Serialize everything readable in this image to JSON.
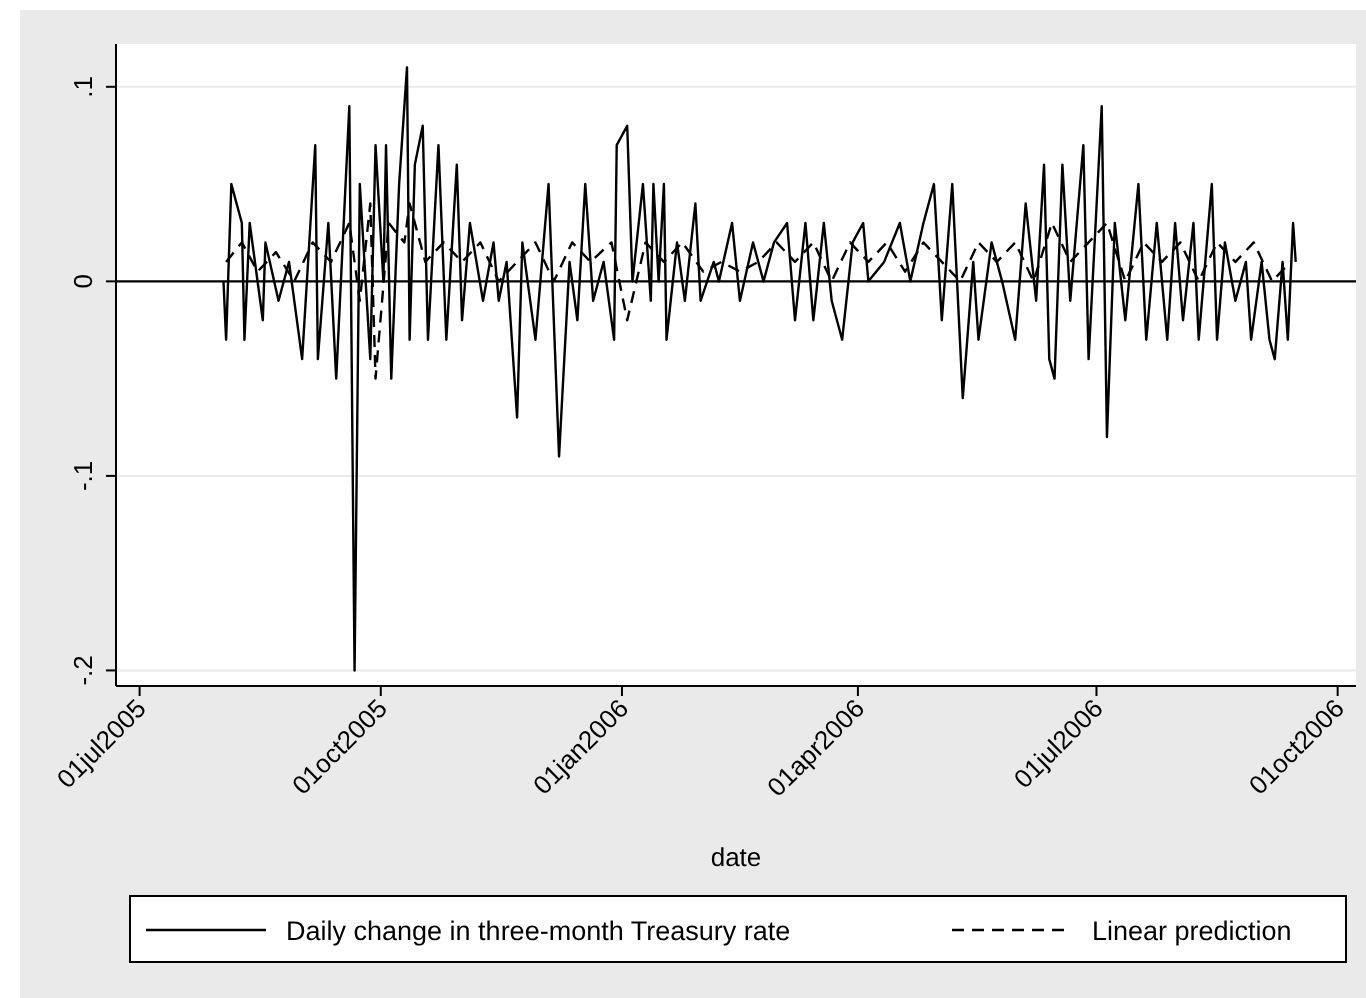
{
  "chart_data": {
    "type": "line",
    "xlabel": "date",
    "legend": "bottom",
    "grid": "y",
    "xlim": [
      "2005-06-22",
      "2006-10-08"
    ],
    "xticks": [
      {
        "value": "2005-07-01",
        "label": "01jul2005"
      },
      {
        "value": "2005-10-01",
        "label": "01oct2005"
      },
      {
        "value": "2006-01-01",
        "label": "01jan2006"
      },
      {
        "value": "2006-04-01",
        "label": "01apr2006"
      },
      {
        "value": "2006-07-01",
        "label": "01jul2006"
      },
      {
        "value": "2006-10-01",
        "label": "01oct2006"
      }
    ],
    "ylim": [
      -0.208,
      0.122
    ],
    "yticks": [
      {
        "value": -0.2,
        "label": "-.2"
      },
      {
        "value": -0.1,
        "label": "-.1"
      },
      {
        "value": 0,
        "label": "0"
      },
      {
        "value": 0.1,
        "label": ".1"
      }
    ],
    "ref_lines": [
      {
        "axis": "y",
        "value": 0,
        "color": "#000000"
      }
    ],
    "series": [
      {
        "name": "Daily change in three-month Treasury rate",
        "color": "#000000",
        "line_style": "solid",
        "x": [
          "2005-08-02",
          "2005-08-03",
          "2005-08-05",
          "2005-08-09",
          "2005-08-10",
          "2005-08-12",
          "2005-08-17",
          "2005-08-18",
          "2005-08-23",
          "2005-08-27",
          "2005-09-01",
          "2005-09-06",
          "2005-09-07",
          "2005-09-11",
          "2005-09-14",
          "2005-09-19",
          "2005-09-21",
          "2005-09-23",
          "2005-09-27",
          "2005-09-29",
          "2005-10-02",
          "2005-10-03",
          "2005-10-05",
          "2005-10-08",
          "2005-10-11",
          "2005-10-12",
          "2005-10-14",
          "2005-10-17",
          "2005-10-19",
          "2005-10-23",
          "2005-10-26",
          "2005-10-30",
          "2005-11-01",
          "2005-11-04",
          "2005-11-09",
          "2005-11-13",
          "2005-11-15",
          "2005-11-18",
          "2005-11-22",
          "2005-11-24",
          "2005-11-29",
          "2005-12-04",
          "2005-12-08",
          "2005-12-12",
          "2005-12-15",
          "2005-12-18",
          "2005-12-21",
          "2005-12-25",
          "2005-12-29",
          "2005-12-30",
          "2006-01-03",
          "2006-01-05",
          "2006-01-09",
          "2006-01-12",
          "2006-01-13",
          "2006-01-15",
          "2006-01-17",
          "2006-01-18",
          "2006-01-22",
          "2006-01-25",
          "2006-01-29",
          "2006-01-31",
          "2006-02-05",
          "2006-02-07",
          "2006-02-12",
          "2006-02-15",
          "2006-02-20",
          "2006-02-24",
          "2006-02-28",
          "2006-03-05",
          "2006-03-08",
          "2006-03-12",
          "2006-03-15",
          "2006-03-19",
          "2006-03-22",
          "2006-03-26",
          "2006-03-30",
          "2006-04-03",
          "2006-04-05",
          "2006-04-11",
          "2006-04-17",
          "2006-04-21",
          "2006-04-26",
          "2006-04-30",
          "2006-05-03",
          "2006-05-07",
          "2006-05-11",
          "2006-05-15",
          "2006-05-17",
          "2006-05-22",
          "2006-05-26",
          "2006-05-31",
          "2006-06-04",
          "2006-06-08",
          "2006-06-11",
          "2006-06-13",
          "2006-06-15",
          "2006-06-18",
          "2006-06-21",
          "2006-06-26",
          "2006-06-28",
          "2006-07-03",
          "2006-07-05",
          "2006-07-08",
          "2006-07-12",
          "2006-07-17",
          "2006-07-20",
          "2006-07-24",
          "2006-07-28",
          "2006-07-31",
          "2006-08-03",
          "2006-08-07",
          "2006-08-09",
          "2006-08-14",
          "2006-08-16",
          "2006-08-19",
          "2006-08-23",
          "2006-08-27",
          "2006-08-29",
          "2006-09-02",
          "2006-09-05",
          "2006-09-07",
          "2006-09-10",
          "2006-09-12",
          "2006-09-14",
          "2006-09-15"
        ],
        "values": [
          0,
          -0.03,
          0.05,
          0.03,
          -0.03,
          0.03,
          -0.02,
          0.02,
          -0.01,
          0.01,
          -0.04,
          0.07,
          -0.04,
          0.03,
          -0.05,
          0.09,
          -0.2,
          0.05,
          -0.04,
          0.07,
          0,
          0.07,
          -0.05,
          0.05,
          0.11,
          -0.03,
          0.06,
          0.08,
          -0.03,
          0.07,
          -0.03,
          0.06,
          -0.02,
          0.03,
          -0.01,
          0.02,
          -0.01,
          0.01,
          -0.07,
          0.02,
          -0.03,
          0.05,
          -0.09,
          0.01,
          -0.02,
          0.05,
          -0.01,
          0.01,
          -0.03,
          0.07,
          0.08,
          0,
          0.05,
          -0.01,
          0.05,
          0,
          0.05,
          -0.03,
          0.02,
          -0.01,
          0.04,
          -0.01,
          0.01,
          0,
          0.03,
          -0.01,
          0.02,
          0,
          0.02,
          0.03,
          -0.02,
          0.03,
          -0.02,
          0.03,
          -0.01,
          -0.03,
          0.02,
          0.03,
          0,
          0.01,
          0.03,
          0,
          0.03,
          0.05,
          -0.02,
          0.05,
          -0.06,
          0.01,
          -0.03,
          0.02,
          0,
          -0.03,
          0.04,
          -0.01,
          0.06,
          -0.04,
          -0.05,
          0.06,
          -0.01,
          0.07,
          -0.04,
          0.09,
          -0.08,
          0.03,
          -0.02,
          0.05,
          -0.03,
          0.03,
          -0.03,
          0.03,
          -0.02,
          0.03,
          -0.03,
          0.05,
          -0.03,
          0.02,
          -0.01,
          0.01,
          -0.03,
          0.01,
          -0.03,
          -0.04,
          0.01,
          -0.03,
          0.03,
          0.01
        ]
      },
      {
        "name": "Linear prediction",
        "color": "#000000",
        "line_style": "dashed",
        "x": [
          "2005-08-03",
          "2005-08-09",
          "2005-08-15",
          "2005-08-22",
          "2005-08-29",
          "2005-09-05",
          "2005-09-12",
          "2005-09-19",
          "2005-09-23",
          "2005-09-27",
          "2005-09-29",
          "2005-10-04",
          "2005-10-10",
          "2005-10-12",
          "2005-10-18",
          "2005-10-25",
          "2005-11-01",
          "2005-11-08",
          "2005-11-15",
          "2005-11-22",
          "2005-11-29",
          "2005-12-06",
          "2005-12-13",
          "2005-12-20",
          "2005-12-28",
          "2006-01-03",
          "2006-01-10",
          "2006-01-17",
          "2006-01-24",
          "2006-02-01",
          "2006-02-08",
          "2006-02-15",
          "2006-02-22",
          "2006-03-01",
          "2006-03-08",
          "2006-03-15",
          "2006-03-22",
          "2006-03-29",
          "2006-04-05",
          "2006-04-12",
          "2006-04-19",
          "2006-04-26",
          "2006-05-03",
          "2006-05-10",
          "2006-05-17",
          "2006-05-24",
          "2006-05-31",
          "2006-06-07",
          "2006-06-14",
          "2006-06-21",
          "2006-06-28",
          "2006-07-05",
          "2006-07-12",
          "2006-07-19",
          "2006-07-26",
          "2006-08-02",
          "2006-08-09",
          "2006-08-16",
          "2006-08-23",
          "2006-08-30",
          "2006-09-06",
          "2006-09-13"
        ],
        "values": [
          0.01,
          0.02,
          0.005,
          0.015,
          0,
          0.02,
          0.01,
          0.03,
          -0.01,
          0.04,
          -0.05,
          0.03,
          0.02,
          0.04,
          0.01,
          0.02,
          0.01,
          0.02,
          0,
          0.01,
          0.02,
          0,
          0.02,
          0.01,
          0.02,
          -0.02,
          0.02,
          0.01,
          0.02,
          0.005,
          0.01,
          0.005,
          0.01,
          0.02,
          0.01,
          0.02,
          0,
          0.02,
          0.01,
          0.02,
          0.005,
          0.02,
          0.01,
          0,
          0.02,
          0.01,
          0.02,
          0,
          0.03,
          0.01,
          0.02,
          0.03,
          0,
          0.02,
          0.01,
          0.02,
          0,
          0.02,
          0.01,
          0.02,
          0,
          0.01
        ]
      }
    ]
  }
}
